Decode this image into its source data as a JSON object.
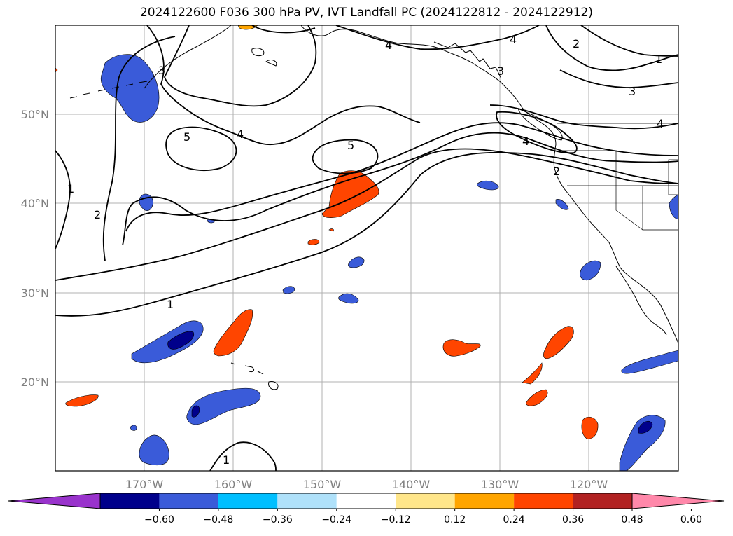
{
  "title": "2024122600 F036 300 hPa PV, IVT Landfall PC (2024122812 - 2024122912)",
  "lat_labels": [
    "50°N",
    "40°N",
    "30°N",
    "20°N"
  ],
  "lon_labels": [
    "170°W",
    "160°W",
    "150°W",
    "140°W",
    "130°W",
    "120°W"
  ],
  "colorbar": {
    "extend": "both",
    "bins": [
      {
        "color": "#9933cc"
      },
      {
        "color": "#00008b"
      },
      {
        "color": "#3a5bd9"
      },
      {
        "color": "#00bfff"
      },
      {
        "color": "#afe1fa"
      },
      {
        "color": "#ffffff"
      },
      {
        "color": "#ffe68a"
      },
      {
        "color": "#ffa500"
      },
      {
        "color": "#ff4500"
      },
      {
        "color": "#b22222"
      },
      {
        "color": "#ff88aa"
      }
    ],
    "tick_labels": [
      "−0.60",
      "−0.48",
      "−0.36",
      "−0.24",
      "−0.12",
      "0.12",
      "0.24",
      "0.36",
      "0.48",
      "0.60"
    ]
  },
  "contour_labels": [
    "1",
    "2",
    "3",
    "4",
    "5"
  ]
}
